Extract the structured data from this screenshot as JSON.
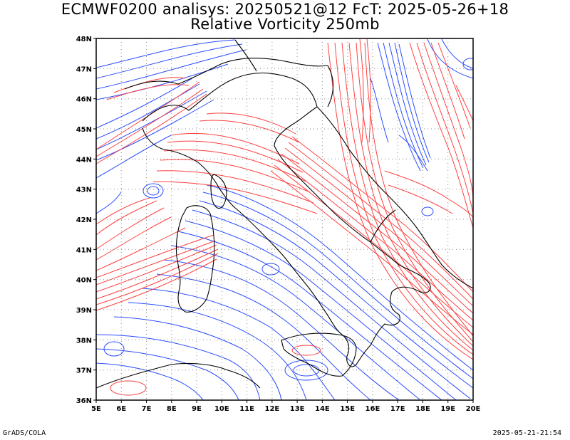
{
  "title_line1": "ECMWF0200 analisys: 20250521@12 FcT: 2025-05-26+18",
  "title_line2": "Relative Vorticity 250mb",
  "footer_left": "GrADS/COLA",
  "footer_right": "2025-05-21-21:54",
  "map": {
    "lon_range": [
      5,
      20
    ],
    "lat_range": [
      36,
      48
    ],
    "lon_labels": [
      "5E",
      "6E",
      "7E",
      "8E",
      "9E",
      "10E",
      "11E",
      "12E",
      "13E",
      "14E",
      "15E",
      "16E",
      "17E",
      "18E",
      "19E",
      "20E"
    ],
    "lat_labels": [
      "36N",
      "37N",
      "38N",
      "39N",
      "40N",
      "41N",
      "42N",
      "43N",
      "44N",
      "45N",
      "46N",
      "47N",
      "48N"
    ],
    "positive_color": "#ff4040",
    "negative_color": "#2a4dff",
    "grid": "dotted"
  }
}
